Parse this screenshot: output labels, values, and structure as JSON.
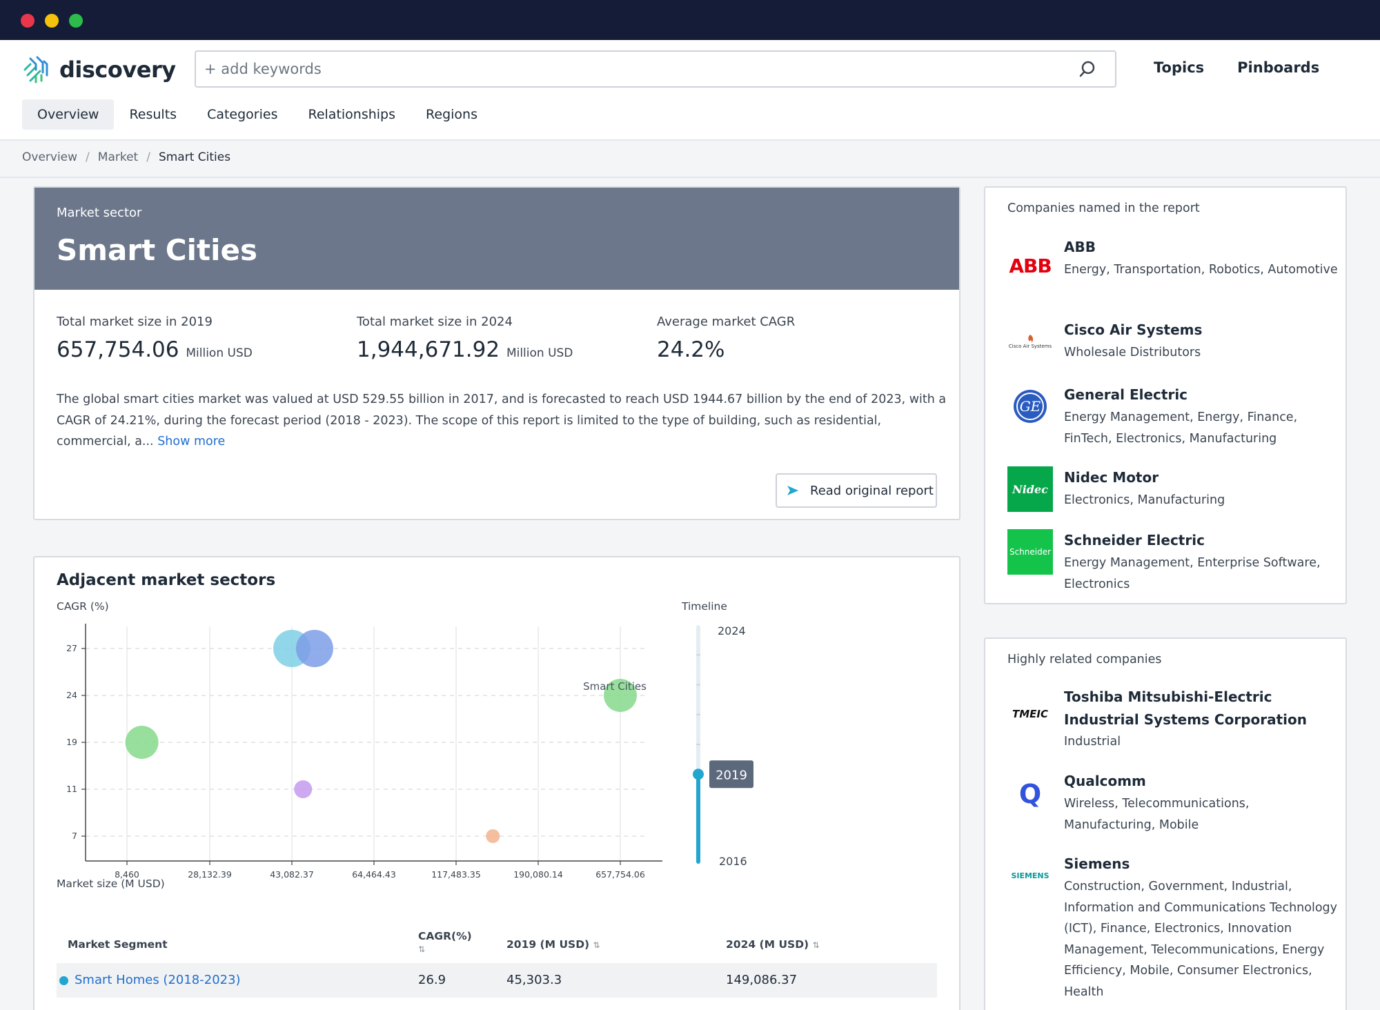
{
  "app": {
    "logo_text": "discovery",
    "search_placeholder": "+ add keywords",
    "top_links": [
      "Topics",
      "Pinboards"
    ],
    "tabs": [
      "Overview",
      "Results",
      "Categories",
      "Relationships",
      "Regions"
    ],
    "active_tab": "Overview"
  },
  "breadcrumb": [
    "Overview",
    "Market",
    "Smart Cities"
  ],
  "hero": {
    "subtitle": "Market sector",
    "title": "Smart Cities",
    "stats": [
      {
        "label": "Total market size in 2019",
        "value": "657,754.06",
        "unit": "Million USD"
      },
      {
        "label": "Total market size in 2024",
        "value": "1,944,671.92",
        "unit": "Million USD"
      },
      {
        "label": "Average market CAGR",
        "value": "24.2%",
        "unit": ""
      }
    ],
    "description": "The global smart cities market was valued at USD 529.55 billion in 2017, and is forecasted to reach USD 1944.67 billion by the end of 2023, with a CAGR of 24.21%, during the forecast period (2018 - 2023). The scope of this report is limited to the type of building, such as residential, commercial, a...",
    "show_more": "Show more",
    "read_button": "Read original report"
  },
  "adjacent": {
    "title": "Adjacent market sectors",
    "table": {
      "headers": [
        "Market Segment",
        "CAGR(%)",
        "2019 (M USD)",
        "2024 (M USD)"
      ],
      "rows": [
        {
          "segment": "Smart Homes (2018-2023)",
          "cagr": "26.9",
          "y2019": "45,303.3",
          "y2024": "149,086.37"
        }
      ]
    }
  },
  "chart_data": {
    "type": "scatter",
    "ylabel": "CAGR (%)",
    "xlabel": "Market size (M USD)",
    "x_ticks": [
      "8,460",
      "28,132.39",
      "43,082.37",
      "64,464.43",
      "117,483.35",
      "190,080.14",
      "657,754.06"
    ],
    "y_ticks": [
      "27",
      "24",
      "19",
      "11",
      "7"
    ],
    "points": [
      {
        "x": 43082.37,
        "y": 27,
        "color": "#7fcfe6",
        "size": "large",
        "label": ""
      },
      {
        "x": 49000,
        "y": 27,
        "color": "#7e9ee8",
        "size": "large",
        "label": ""
      },
      {
        "x": 657754.06,
        "y": 24,
        "color": "#86d98c",
        "size": "medium",
        "label": "Smart Cities"
      },
      {
        "x": 12000,
        "y": 19,
        "color": "#86d98c",
        "size": "medium",
        "label": ""
      },
      {
        "x": 46000,
        "y": 11,
        "color": "#c49af0",
        "size": "small",
        "label": ""
      },
      {
        "x": 150000,
        "y": 7,
        "color": "#f2b48e",
        "size": "tiny",
        "label": ""
      }
    ],
    "timeline": {
      "label": "Timeline",
      "start": "2016",
      "end": "2024",
      "current": "2019"
    }
  },
  "companies_named": {
    "title": "Companies named in the report",
    "items": [
      {
        "name": "ABB",
        "tags": "Energy, Transportation, Robotics, Automotive",
        "logo": "ABB"
      },
      {
        "name": "Cisco Air Systems",
        "tags": "Wholesale Distributors",
        "logo": "Cisco Air Systems"
      },
      {
        "name": "General Electric",
        "tags": "Energy Management, Energy, Finance, FinTech, Electronics, Manufacturing",
        "logo": "ge-logo-icon"
      },
      {
        "name": "Nidec Motor",
        "tags": "Electronics, Manufacturing",
        "logo": "Nidec"
      },
      {
        "name": "Schneider Electric",
        "tags": "Energy Management, Enterprise Software, Electronics",
        "logo": "Schneider"
      }
    ]
  },
  "related": {
    "title": "Highly related companies",
    "items": [
      {
        "name": "Toshiba Mitsubishi-Electric Industrial Systems Corporation",
        "tags": "Industrial",
        "logo": "TMEIC"
      },
      {
        "name": "Qualcomm",
        "tags": "Wireless, Telecommunications, Manufacturing, Mobile",
        "logo": "Q"
      },
      {
        "name": "Siemens",
        "tags": "Construction, Government, Industrial, Information and Communications Technology (ICT), Finance, Electronics, Innovation Management, Telecommunications, Energy Efficiency, Mobile, Consumer Electronics, Health",
        "logo": "SIEMENS"
      }
    ]
  }
}
